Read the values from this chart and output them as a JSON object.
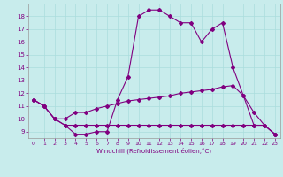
{
  "background_color": "#c8ecec",
  "line_color": "#800080",
  "grid_color": "#aadddd",
  "xlabel": "Windchill (Refroidissement éolien,°C)",
  "xlim": [
    -0.5,
    23.5
  ],
  "ylim": [
    8.5,
    19.0
  ],
  "yticks": [
    9,
    10,
    11,
    12,
    13,
    14,
    15,
    16,
    17,
    18
  ],
  "xticks": [
    0,
    1,
    2,
    3,
    4,
    5,
    6,
    7,
    8,
    9,
    10,
    11,
    12,
    13,
    14,
    15,
    16,
    17,
    18,
    19,
    20,
    21,
    22,
    23
  ],
  "series1_x": [
    0,
    1,
    2,
    3,
    4,
    5,
    6,
    7,
    8,
    9,
    10,
    11,
    12,
    13,
    14,
    15,
    16,
    17,
    18,
    19,
    20,
    21,
    22,
    23
  ],
  "series1_y": [
    11.5,
    11.0,
    10.0,
    9.5,
    8.8,
    8.8,
    9.0,
    9.0,
    11.5,
    13.3,
    18.0,
    18.5,
    18.5,
    18.0,
    17.5,
    17.5,
    16.0,
    17.0,
    17.5,
    14.0,
    11.8,
    10.5,
    9.5,
    8.8
  ],
  "series2_x": [
    0,
    1,
    2,
    3,
    4,
    5,
    6,
    7,
    8,
    9,
    10,
    11,
    12,
    13,
    14,
    15,
    16,
    17,
    18,
    19,
    20,
    21,
    22,
    23
  ],
  "series2_y": [
    11.5,
    11.0,
    10.0,
    10.0,
    10.5,
    10.5,
    10.8,
    11.0,
    11.2,
    11.4,
    11.5,
    11.6,
    11.7,
    11.8,
    12.0,
    12.1,
    12.2,
    12.3,
    12.5,
    12.6,
    11.8,
    9.5,
    9.5,
    8.8
  ],
  "series3_x": [
    0,
    1,
    2,
    3,
    4,
    5,
    6,
    7,
    8,
    9,
    10,
    11,
    12,
    13,
    14,
    15,
    16,
    17,
    18,
    19,
    20,
    21,
    22,
    23
  ],
  "series3_y": [
    11.5,
    11.0,
    10.0,
    9.5,
    9.5,
    9.5,
    9.5,
    9.5,
    9.5,
    9.5,
    9.5,
    9.5,
    9.5,
    9.5,
    9.5,
    9.5,
    9.5,
    9.5,
    9.5,
    9.5,
    9.5,
    9.5,
    9.5,
    8.8
  ]
}
